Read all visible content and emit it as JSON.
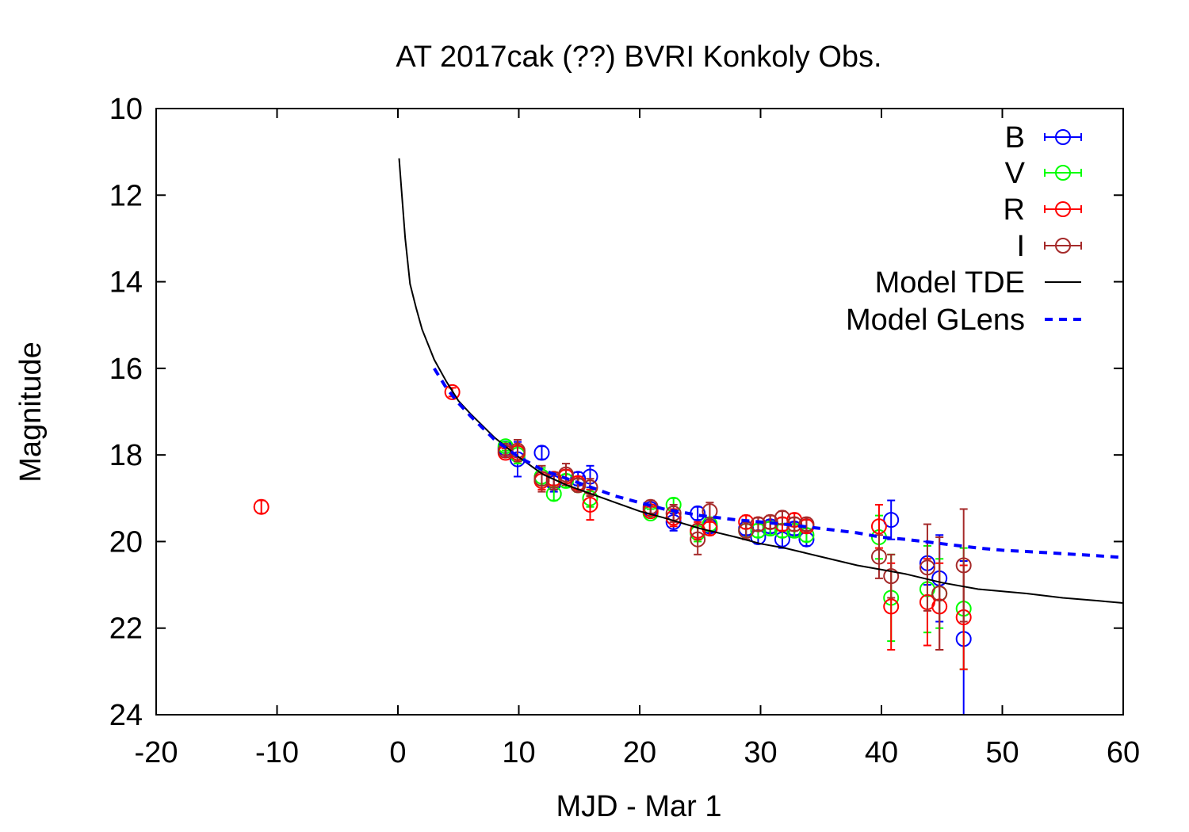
{
  "chart_data": {
    "type": "scatter",
    "title": "AT 2017cak (??) BVRI Konkoly Obs.",
    "xlabel": "MJD - Mar 1",
    "ylabel": "Magnitude",
    "xlim": [
      -20,
      60
    ],
    "ylim": [
      24,
      10
    ],
    "y_inverted": true,
    "xticks": [
      -20,
      -10,
      0,
      10,
      20,
      30,
      40,
      50,
      60
    ],
    "xtick_labels": [
      "-20",
      "-10",
      "0",
      "10",
      "20",
      "30",
      "40",
      "50",
      "60"
    ],
    "yticks": [
      10,
      12,
      14,
      16,
      18,
      20,
      22,
      24
    ],
    "ytick_labels": [
      "10",
      "12",
      "14",
      "16",
      "18",
      "20",
      "22",
      "24"
    ],
    "grid": false,
    "legend_position": "top-right",
    "series": [
      {
        "name": "B",
        "color": "#0000ff",
        "marker": "circle-errorbar",
        "points": [
          {
            "x": 8.9,
            "y": 17.85,
            "err": 0.1
          },
          {
            "x": 9.9,
            "y": 18.1,
            "err": 0.4
          },
          {
            "x": 11.9,
            "y": 17.95,
            "err": 0.15
          },
          {
            "x": 12.9,
            "y": 18.65,
            "err": 0.2
          },
          {
            "x": 14.9,
            "y": 18.55,
            "err": 0.15
          },
          {
            "x": 15.9,
            "y": 18.5,
            "err": 0.25
          },
          {
            "x": 20.9,
            "y": 19.25,
            "err": 0.1
          },
          {
            "x": 22.8,
            "y": 19.55,
            "err": 0.2
          },
          {
            "x": 24.8,
            "y": 19.35,
            "err": 0.15
          },
          {
            "x": 25.8,
            "y": 19.65,
            "err": 0.15
          },
          {
            "x": 28.8,
            "y": 19.7,
            "err": 0.15
          },
          {
            "x": 29.8,
            "y": 19.9,
            "err": 0.15
          },
          {
            "x": 30.8,
            "y": 19.65,
            "err": 0.15
          },
          {
            "x": 31.8,
            "y": 19.95,
            "err": 0.2
          },
          {
            "x": 32.8,
            "y": 19.7,
            "err": 0.15
          },
          {
            "x": 33.8,
            "y": 19.95,
            "err": 0.15
          },
          {
            "x": 40.8,
            "y": 19.5,
            "err": 0.45
          },
          {
            "x": 43.8,
            "y": 20.5,
            "err": 0.5
          },
          {
            "x": 44.8,
            "y": 20.85,
            "err": 1.0
          },
          {
            "x": 46.8,
            "y": 22.25,
            "err": 1.8
          }
        ]
      },
      {
        "name": "V",
        "color": "#00ff00",
        "marker": "circle-errorbar",
        "points": [
          {
            "x": 8.9,
            "y": 17.8,
            "err": 0.1
          },
          {
            "x": 9.9,
            "y": 18.0,
            "err": 0.2
          },
          {
            "x": 11.9,
            "y": 18.5,
            "err": 0.2
          },
          {
            "x": 12.9,
            "y": 18.9,
            "err": 0.15
          },
          {
            "x": 13.9,
            "y": 18.6,
            "err": 0.15
          },
          {
            "x": 14.9,
            "y": 18.7,
            "err": 0.15
          },
          {
            "x": 15.9,
            "y": 19.0,
            "err": 0.2
          },
          {
            "x": 20.9,
            "y": 19.35,
            "err": 0.1
          },
          {
            "x": 22.8,
            "y": 19.15,
            "err": 0.15
          },
          {
            "x": 24.8,
            "y": 19.8,
            "err": 0.2
          },
          {
            "x": 25.8,
            "y": 19.6,
            "err": 0.15
          },
          {
            "x": 28.8,
            "y": 19.75,
            "err": 0.15
          },
          {
            "x": 29.8,
            "y": 19.75,
            "err": 0.15
          },
          {
            "x": 30.8,
            "y": 19.7,
            "err": 0.15
          },
          {
            "x": 31.8,
            "y": 19.75,
            "err": 0.15
          },
          {
            "x": 32.8,
            "y": 19.75,
            "err": 0.15
          },
          {
            "x": 33.8,
            "y": 19.85,
            "err": 0.15
          },
          {
            "x": 39.8,
            "y": 19.9,
            "err": 0.5
          },
          {
            "x": 40.8,
            "y": 21.3,
            "err": 1.0
          },
          {
            "x": 43.8,
            "y": 21.1,
            "err": 1.0
          },
          {
            "x": 44.8,
            "y": 21.2,
            "err": 0.8
          },
          {
            "x": 46.8,
            "y": 21.55,
            "err": 1.4
          }
        ]
      },
      {
        "name": "R",
        "color": "#ff0000",
        "marker": "circle-errorbar",
        "points": [
          {
            "x": -11.3,
            "y": 19.2,
            "err": 0.15
          },
          {
            "x": 4.5,
            "y": 16.55,
            "err": 0.1
          },
          {
            "x": 8.9,
            "y": 17.95,
            "err": 0.1
          },
          {
            "x": 9.9,
            "y": 17.95,
            "err": 0.2
          },
          {
            "x": 11.9,
            "y": 18.6,
            "err": 0.2
          },
          {
            "x": 12.9,
            "y": 18.55,
            "err": 0.15
          },
          {
            "x": 13.9,
            "y": 18.5,
            "err": 0.15
          },
          {
            "x": 14.9,
            "y": 18.65,
            "err": 0.15
          },
          {
            "x": 15.9,
            "y": 19.15,
            "err": 0.35
          },
          {
            "x": 20.9,
            "y": 19.3,
            "err": 0.1
          },
          {
            "x": 22.8,
            "y": 19.45,
            "err": 0.2
          },
          {
            "x": 24.8,
            "y": 19.75,
            "err": 0.2
          },
          {
            "x": 25.8,
            "y": 19.7,
            "err": 0.15
          },
          {
            "x": 28.8,
            "y": 19.55,
            "err": 0.15
          },
          {
            "x": 29.8,
            "y": 19.6,
            "err": 0.15
          },
          {
            "x": 30.8,
            "y": 19.55,
            "err": 0.15
          },
          {
            "x": 31.8,
            "y": 19.6,
            "err": 0.15
          },
          {
            "x": 32.8,
            "y": 19.5,
            "err": 0.15
          },
          {
            "x": 33.8,
            "y": 19.65,
            "err": 0.15
          },
          {
            "x": 39.8,
            "y": 19.65,
            "err": 0.5
          },
          {
            "x": 40.8,
            "y": 21.5,
            "err": 1.0
          },
          {
            "x": 43.8,
            "y": 21.4,
            "err": 1.0
          },
          {
            "x": 44.8,
            "y": 21.5,
            "err": 1.0
          },
          {
            "x": 46.8,
            "y": 21.75,
            "err": 1.2
          }
        ]
      },
      {
        "name": "I",
        "color": "#a52a2a",
        "marker": "circle-errorbar",
        "points": [
          {
            "x": 8.9,
            "y": 17.9,
            "err": 0.1
          },
          {
            "x": 9.9,
            "y": 17.9,
            "err": 0.25
          },
          {
            "x": 11.9,
            "y": 18.55,
            "err": 0.3
          },
          {
            "x": 12.9,
            "y": 18.6,
            "err": 0.2
          },
          {
            "x": 13.9,
            "y": 18.45,
            "err": 0.25
          },
          {
            "x": 14.9,
            "y": 18.7,
            "err": 0.15
          },
          {
            "x": 15.9,
            "y": 18.75,
            "err": 0.2
          },
          {
            "x": 20.9,
            "y": 19.2,
            "err": 0.15
          },
          {
            "x": 22.8,
            "y": 19.35,
            "err": 0.2
          },
          {
            "x": 24.8,
            "y": 19.95,
            "err": 0.35
          },
          {
            "x": 25.8,
            "y": 19.3,
            "err": 0.2
          },
          {
            "x": 28.8,
            "y": 19.75,
            "err": 0.2
          },
          {
            "x": 29.8,
            "y": 19.6,
            "err": 0.15
          },
          {
            "x": 30.8,
            "y": 19.55,
            "err": 0.15
          },
          {
            "x": 31.8,
            "y": 19.45,
            "err": 0.15
          },
          {
            "x": 32.8,
            "y": 19.6,
            "err": 0.15
          },
          {
            "x": 33.8,
            "y": 19.6,
            "err": 0.15
          },
          {
            "x": 39.8,
            "y": 20.35,
            "err": 0.5
          },
          {
            "x": 40.8,
            "y": 20.8,
            "err": 0.5
          },
          {
            "x": 43.8,
            "y": 20.6,
            "err": 1.0
          },
          {
            "x": 44.8,
            "y": 21.2,
            "err": 1.3
          },
          {
            "x": 46.8,
            "y": 20.55,
            "err": 1.3
          }
        ]
      }
    ],
    "models": [
      {
        "name": "Model TDE",
        "color": "#000000",
        "style": "solid",
        "x": [
          0.1,
          0.3,
          0.6,
          1.0,
          1.5,
          2.0,
          3.0,
          4.0,
          5.0,
          6.0,
          8.0,
          10.0,
          12.0,
          14.0,
          16.0,
          18.0,
          20.0,
          22.0,
          25.0,
          28.0,
          30.0,
          32.0,
          35.0,
          38.0,
          40.0,
          42.0,
          45.0,
          48.0,
          50.0,
          52.0,
          55.0,
          58.0,
          60.0
        ],
        "y": [
          11.15,
          11.9,
          13.0,
          14.05,
          14.6,
          15.1,
          15.8,
          16.3,
          16.75,
          17.05,
          17.6,
          18.05,
          18.45,
          18.7,
          18.9,
          19.1,
          19.3,
          19.45,
          19.7,
          19.9,
          20.05,
          20.15,
          20.35,
          20.55,
          20.65,
          20.75,
          20.95,
          21.1,
          21.15,
          21.2,
          21.3,
          21.37,
          21.42
        ]
      },
      {
        "name": "Model GLens",
        "color": "#0000ff",
        "style": "dashed",
        "x": [
          3.0,
          4.0,
          5.0,
          6.0,
          8.0,
          10.0,
          12.0,
          14.0,
          16.0,
          18.0,
          20.0,
          22.0,
          25.0,
          28.0,
          30.0,
          32.0,
          35.0,
          38.0,
          40.0,
          42.0,
          45.0,
          48.0,
          50.0,
          52.0,
          55.0,
          58.0,
          60.0
        ],
        "y": [
          16.0,
          16.45,
          16.8,
          17.1,
          17.65,
          18.05,
          18.35,
          18.55,
          18.75,
          18.95,
          19.1,
          19.25,
          19.4,
          19.5,
          19.55,
          19.6,
          19.7,
          19.8,
          19.9,
          19.95,
          20.05,
          20.15,
          20.2,
          20.23,
          20.28,
          20.33,
          20.37
        ]
      }
    ]
  }
}
